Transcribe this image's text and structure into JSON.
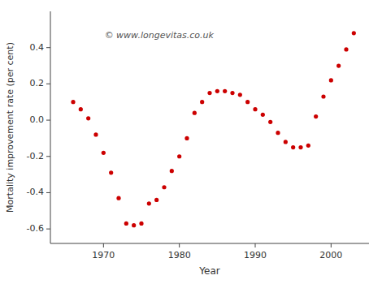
{
  "chart_data": {
    "type": "scatter",
    "x": [
      1966,
      1967,
      1968,
      1969,
      1970,
      1971,
      1972,
      1973,
      1974,
      1975,
      1976,
      1977,
      1978,
      1979,
      1980,
      1981,
      1982,
      1983,
      1984,
      1985,
      1986,
      1987,
      1988,
      1989,
      1990,
      1991,
      1992,
      1993,
      1994,
      1995,
      1996,
      1997,
      1998,
      1999,
      2000,
      2001,
      2002,
      2003
    ],
    "values": [
      0.1,
      0.06,
      0.01,
      -0.08,
      -0.18,
      -0.29,
      -0.43,
      -0.57,
      -0.58,
      -0.57,
      -0.46,
      -0.44,
      -0.37,
      -0.28,
      -0.2,
      -0.1,
      0.04,
      0.1,
      0.15,
      0.16,
      0.16,
      0.15,
      0.14,
      0.1,
      0.06,
      0.03,
      -0.01,
      -0.07,
      -0.12,
      -0.15,
      -0.15,
      -0.14,
      0.02,
      0.13,
      0.22,
      0.3,
      0.39,
      0.48
    ],
    "color": "#cc0000",
    "xlabel": "Year",
    "ylabel": "Mortality improvement rate (per cent)",
    "annotation": "© www.longevitas.co.uk",
    "xlim": [
      1963,
      2005
    ],
    "ylim": [
      -0.68,
      0.6
    ],
    "xticks": [
      1970,
      1980,
      1990,
      2000
    ],
    "yticks": [
      -0.6,
      -0.4,
      -0.2,
      {
        "value": 0.0,
        "label": "0.0"
      },
      0.2,
      0.4
    ],
    "grid": false
  }
}
